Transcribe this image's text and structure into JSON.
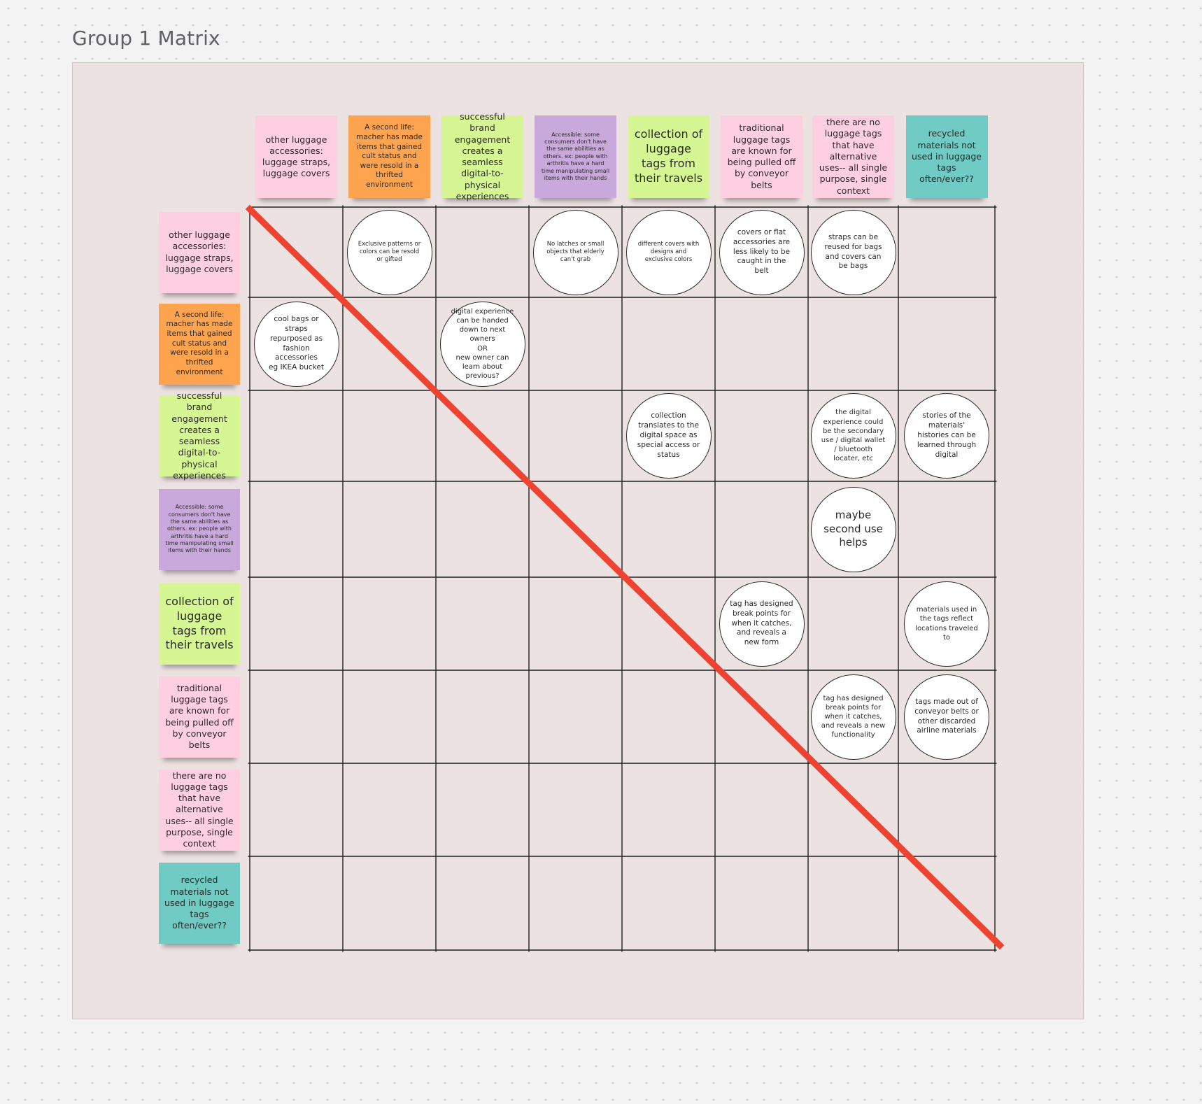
{
  "board": {
    "title": "Group 1 Matrix"
  },
  "colors": {
    "pink": "#fecfe0",
    "orange": "#fea34e",
    "green": "#d5f692",
    "purple": "#c9a8dc",
    "teal": "#6fcbc4",
    "diagonal": "#ef4331",
    "grid": "#1f1f1f"
  },
  "categories": [
    {
      "text": "other luggage accessories: luggage straps, luggage covers",
      "color": "pink"
    },
    {
      "text": "A second life: macher has made items that gained cult status and were resold in a thrifted environment",
      "color": "orange"
    },
    {
      "text": "successful brand engagement creates a seamless digital-to-physical experiences",
      "color": "green"
    },
    {
      "text": "Accessible: some consumers don't have the same abilities as others. ex: people with arthritis have a hard time manipulating small items with their hands",
      "color": "purple"
    },
    {
      "text": "collection of luggage tags from their travels",
      "color": "green"
    },
    {
      "text": "traditional luggage tags are known for being pulled off by conveyor belts",
      "color": "pink"
    },
    {
      "text": "there are no luggage tags that have alternative uses-- all single purpose, single context",
      "color": "pink"
    },
    {
      "text": "recycled materials not used in luggage tags often/ever??",
      "color": "teal"
    }
  ],
  "ideas": [
    {
      "row": 0,
      "col": 1,
      "text": "Exclusive patterns or colors can be resold or gifted"
    },
    {
      "row": 0,
      "col": 3,
      "text": "No latches or small objects that elderly can't grab"
    },
    {
      "row": 0,
      "col": 4,
      "text": "different covers with designs and exclusive colors"
    },
    {
      "row": 0,
      "col": 5,
      "text": "covers or flat accessories are less likely to be caught in the belt"
    },
    {
      "row": 0,
      "col": 6,
      "text": "straps can be reused for bags and covers can be bags"
    },
    {
      "row": 1,
      "col": 0,
      "text": "cool bags or straps repurposed as fashion accessories\neg IKEA bucket"
    },
    {
      "row": 1,
      "col": 2,
      "text": "digital experience can be handed down to next owners\nOR\nnew owner can learn about previous?"
    },
    {
      "row": 2,
      "col": 4,
      "text": "collection translates to the digital space as special access or status"
    },
    {
      "row": 2,
      "col": 6,
      "text": "the digital experience could be the secondary use / digital wallet / bluetooth locater, etc"
    },
    {
      "row": 2,
      "col": 7,
      "text": "stories of the materials' histories can be learned through digital"
    },
    {
      "row": 3,
      "col": 6,
      "text": "maybe second use helps"
    },
    {
      "row": 4,
      "col": 5,
      "text": "tag has designed break points for when it catches, and reveals a new form"
    },
    {
      "row": 4,
      "col": 7,
      "text": "materials used in the tags reflect locations traveled to"
    },
    {
      "row": 5,
      "col": 6,
      "text": "tag has designed break points for when it catches, and reveals a new functionality"
    },
    {
      "row": 5,
      "col": 7,
      "text": "tags made out of conveyor belts or other discarded airline materials"
    }
  ]
}
